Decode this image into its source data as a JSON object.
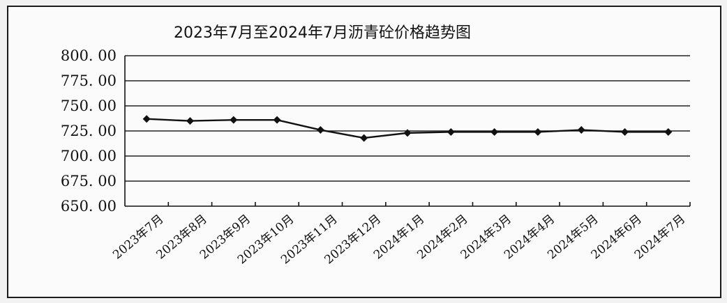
{
  "chart_data": {
    "type": "line",
    "title": "2023年7月至2024年7月沥青砼价格趋势图",
    "categories": [
      "2023年7月",
      "2023年8月",
      "2023年9月",
      "2023年10月",
      "2023年11月",
      "2023年12月",
      "2024年1月",
      "2024年2月",
      "2024年3月",
      "2024年4月",
      "2024年5月",
      "2024年6月",
      "2024年7月"
    ],
    "values": [
      737,
      735,
      736,
      736,
      726,
      718,
      723,
      724,
      724,
      724,
      726,
      724,
      724
    ],
    "ylim": [
      650,
      800
    ],
    "yticks": [
      "800. 00",
      "775. 00",
      "750. 00",
      "725. 00",
      "700. 00",
      "675. 00",
      "650. 00"
    ],
    "grid": true,
    "legend": "none",
    "color": "#111111"
  }
}
